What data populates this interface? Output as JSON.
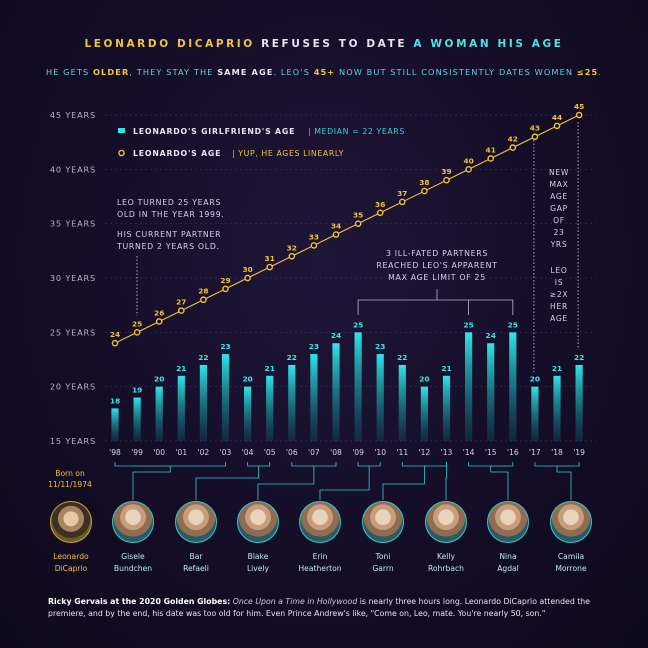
{
  "header": {
    "title_part1": "LEONARDO DICAPRIO",
    "title_part2": " REFUSES TO DATE ",
    "title_part3": "A WOMAN HIS AGE",
    "subtitle_a": "HE GETS ",
    "subtitle_b": "OLDER",
    "subtitle_c": ", THEY STAY THE ",
    "subtitle_d": "SAME AGE",
    "subtitle_e": ". LEO'S ",
    "subtitle_f": "45+",
    "subtitle_g": " NOW BUT STILL CONSISTENTLY DATES WOMEN ",
    "subtitle_h": "≤25",
    "subtitle_i": "."
  },
  "chart_data": {
    "type": "bar",
    "x": [
      "'98",
      "'99",
      "'00",
      "'01",
      "'02",
      "'03",
      "'04",
      "'05",
      "'06",
      "'07",
      "'08",
      "'09",
      "'10",
      "'11",
      "'12",
      "'13",
      "'14",
      "'15",
      "'16",
      "'17",
      "'18",
      "'19"
    ],
    "ylim": [
      15,
      45
    ],
    "yticks": [
      "15 YEARS",
      "20 YEARS",
      "25 YEARS",
      "30 YEARS",
      "35 YEARS",
      "40 YEARS",
      "45 YEARS"
    ],
    "series": [
      {
        "name": "LEONARDO'S GIRLFRIEND'S AGE",
        "type": "bar",
        "note": "MEDIAN = 22 YEARS",
        "color": "#1fd0d6",
        "values": [
          18,
          19,
          20,
          21,
          22,
          23,
          20,
          21,
          22,
          23,
          24,
          25,
          23,
          22,
          20,
          21,
          25,
          24,
          25,
          20,
          21,
          22
        ]
      },
      {
        "name": "LEONARDO'S AGE",
        "type": "line",
        "note": "YUP, HE AGES LINEARLY",
        "color": "#f0c43c",
        "values": [
          24,
          25,
          26,
          27,
          28,
          29,
          30,
          31,
          32,
          33,
          34,
          35,
          36,
          37,
          38,
          39,
          40,
          41,
          42,
          43,
          44,
          45
        ]
      }
    ],
    "annotations": {
      "left": [
        "LEO TURNED 25 YEARS",
        "OLD IN THE YEAR 1999.",
        "HIS CURRENT PARTNER",
        "TURNED 2 YEARS OLD."
      ],
      "middle": [
        "3 ILL-FATED PARTNERS",
        "REACHED LEO'S APPARENT",
        "MAX AGE LIMIT OF 25"
      ],
      "right": [
        "NEW",
        "MAX",
        "AGE",
        "GAP",
        "OF",
        "23",
        "YRS",
        "LEO",
        "IS",
        "≥2X",
        "HER",
        "AGE"
      ]
    }
  },
  "people": {
    "born": [
      "Born on",
      "11/11/1974"
    ],
    "list": [
      {
        "first": "Leonardo",
        "last": "DiCaprio"
      },
      {
        "first": "Gisele",
        "last": "Bundchen"
      },
      {
        "first": "Bar",
        "last": "Refaeli"
      },
      {
        "first": "Blake",
        "last": "Lively"
      },
      {
        "first": "Erin",
        "last": "Heatherton"
      },
      {
        "first": "Toni",
        "last": "Garrn"
      },
      {
        "first": "Kelly",
        "last": "Rohrbach"
      },
      {
        "first": "Nina",
        "last": "Agdal"
      },
      {
        "first": "Camila",
        "last": "Morrone"
      }
    ]
  },
  "footer": {
    "lead": "Ricky Gervais at the 2020 Golden Globes:",
    "italic": "Once Upon a Time in Hollywood",
    "rest": " is nearly three hours long. Leonardo DiCaprio attended the premiere, and by the end, his date was too old for him.  Even Prince Andrew's like, \"Come on, Leo, mate. You're nearly 50, son.\""
  },
  "colors": {
    "accent_yellow": "#f0c43c",
    "accent_cyan": "#1fd0d6",
    "background": "#140d26"
  }
}
